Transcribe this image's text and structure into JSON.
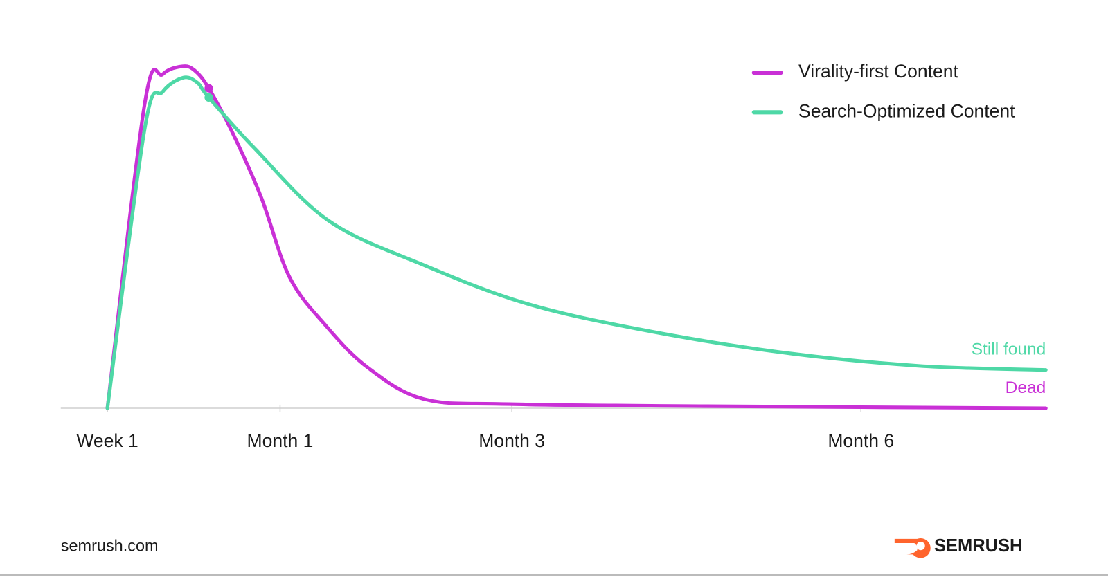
{
  "chart_data": {
    "type": "line",
    "xlim": [
      0,
      100
    ],
    "ylim": [
      0,
      100
    ],
    "xticks": [
      {
        "value": 0,
        "label": "Week 1"
      },
      {
        "value": 18.4,
        "label": "Month 1"
      },
      {
        "value": 43.1,
        "label": "Month 3"
      },
      {
        "value": 80.3,
        "label": "Month 6"
      }
    ],
    "legend": "top-right",
    "series": [
      {
        "name": "Virality-first Content",
        "color": "#c930d6",
        "x": [
          0,
          4.0,
          5.9,
          8.0,
          9.3,
          10.8,
          13.4,
          16.4,
          19.4,
          23.2,
          27.7,
          33.7,
          42.8,
          63.9,
          100
        ],
        "values": [
          0,
          89.5,
          97.7,
          100,
          98.8,
          93.6,
          80.2,
          61.6,
          38.4,
          24.4,
          12.0,
          2.7,
          1.2,
          0.6,
          0
        ]
      },
      {
        "name": "Search-Optimized Content",
        "color": "#4ed8a6",
        "x": [
          0,
          4.0,
          5.9,
          8.1,
          9.6,
          10.8,
          15.7,
          23.6,
          33.7,
          44.3,
          56.3,
          71.4,
          86.4,
          100
        ],
        "values": [
          0,
          82.2,
          92.6,
          96.7,
          95.2,
          90.9,
          76.0,
          54.8,
          41.9,
          30.9,
          23.3,
          16.5,
          12.4,
          11.2
        ]
      }
    ],
    "annotations": [
      {
        "text": "Still found",
        "series": 1
      },
      {
        "text": "Dead",
        "series": 0
      }
    ]
  },
  "footer": {
    "source": "semrush.com",
    "brand": "SEMRUSH"
  }
}
